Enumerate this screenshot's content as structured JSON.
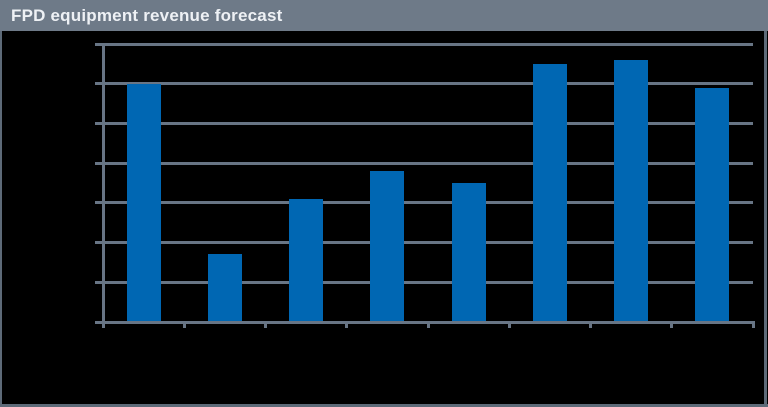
{
  "window": {
    "background": "#000000",
    "border_color": "#5d6a78"
  },
  "header": {
    "title": "FPD equipment revenue forecast",
    "bg_color": "#6e7a88",
    "text_color": "#eef1f5"
  },
  "chart_data": {
    "type": "bar",
    "title": "FPD equipment revenue forecast",
    "categories": [
      "",
      "",
      "",
      "",
      "",
      "",
      "",
      ""
    ],
    "values": [
      6.0,
      1.7,
      3.1,
      3.8,
      3.5,
      6.5,
      6.6,
      5.9
    ],
    "xlabel": "",
    "ylabel": "",
    "ylim": [
      0,
      7
    ],
    "y_gridline_step": 1,
    "grid": true,
    "legend": false,
    "axis_tick_labels_visible": false,
    "bar_color": "#0067b3",
    "grid_color": "#687585",
    "axis_color": "#687585",
    "plot_background": "#000000"
  }
}
